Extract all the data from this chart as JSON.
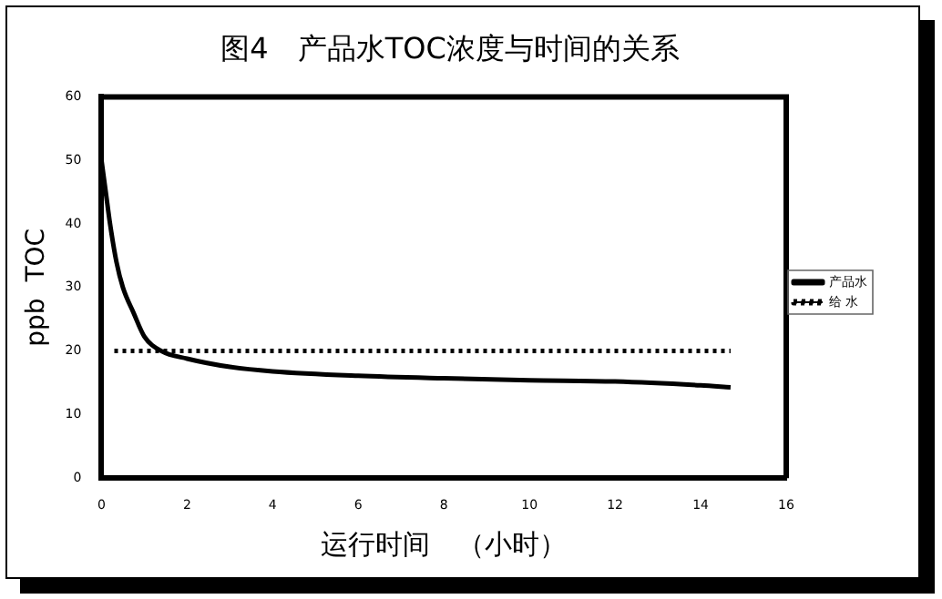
{
  "chart_data": {
    "type": "line",
    "title": "图4　产品水TOC浓度与时间的关系",
    "xlabel": "运行时间　（小时）",
    "ylabel": "ppb  TOC",
    "series": [
      {
        "name": "产品水",
        "color": "#000000",
        "line_style": "solid",
        "x": [
          0,
          0.1,
          0.2,
          0.35,
          0.5,
          0.75,
          1,
          1.4,
          2,
          3,
          4,
          6,
          8,
          10,
          12,
          14,
          14.7
        ],
        "values": [
          50,
          45,
          40,
          34,
          30,
          26,
          22.3,
          20,
          18.8,
          17.5,
          16.8,
          16.1,
          15.7,
          15.4,
          15.2,
          14.6,
          14.3
        ]
      },
      {
        "name": "给 水",
        "color": "#000000",
        "line_style": "dotted",
        "x": [
          0.3,
          14.7
        ],
        "values": [
          20,
          20
        ]
      }
    ],
    "xlim": [
      0,
      16
    ],
    "xticks": [
      0,
      2,
      4,
      6,
      8,
      10,
      12,
      14,
      16
    ],
    "ylim": [
      0,
      60
    ],
    "yticks": [
      0,
      10,
      20,
      30,
      40,
      50,
      60
    ],
    "grid": false,
    "legend": "right",
    "marker": "none"
  }
}
